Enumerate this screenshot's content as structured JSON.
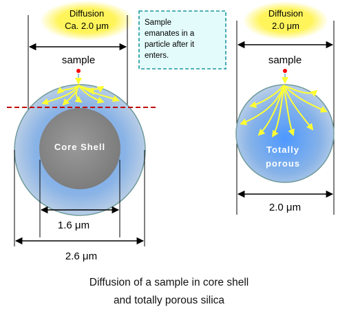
{
  "core_shell": {
    "diffusion_title": "Diffusion",
    "diffusion_value": "Ca. 2.0 μm",
    "sample_label": "sample",
    "particle_label": "Core Shell",
    "core_diameter": "1.6 μm",
    "particle_diameter": "2.6 μm"
  },
  "note_lines": [
    "Sample",
    "emanates in a",
    "particle after it",
    "enters."
  ],
  "totally_porous": {
    "diffusion_title": "Diffusion",
    "diffusion_value": "2.0 μm",
    "sample_label": "sample",
    "particle_label_line1": "Totally",
    "particle_label_line2": "porous",
    "particle_diameter": "2.0 μm"
  },
  "caption": {
    "line1": "Diffusion of a sample in core shell",
    "line2": "and totally porous silica"
  },
  "colors": {
    "glow": "#fff45a",
    "note_bg": "#e4fbfb",
    "note_border": "#1a98a0",
    "sample_dot": "#ff0000",
    "diffusion_arrows": "#ffff33",
    "cut_line": "#c00000",
    "core": "#8a8a8a",
    "shell": "#9ab8df"
  }
}
